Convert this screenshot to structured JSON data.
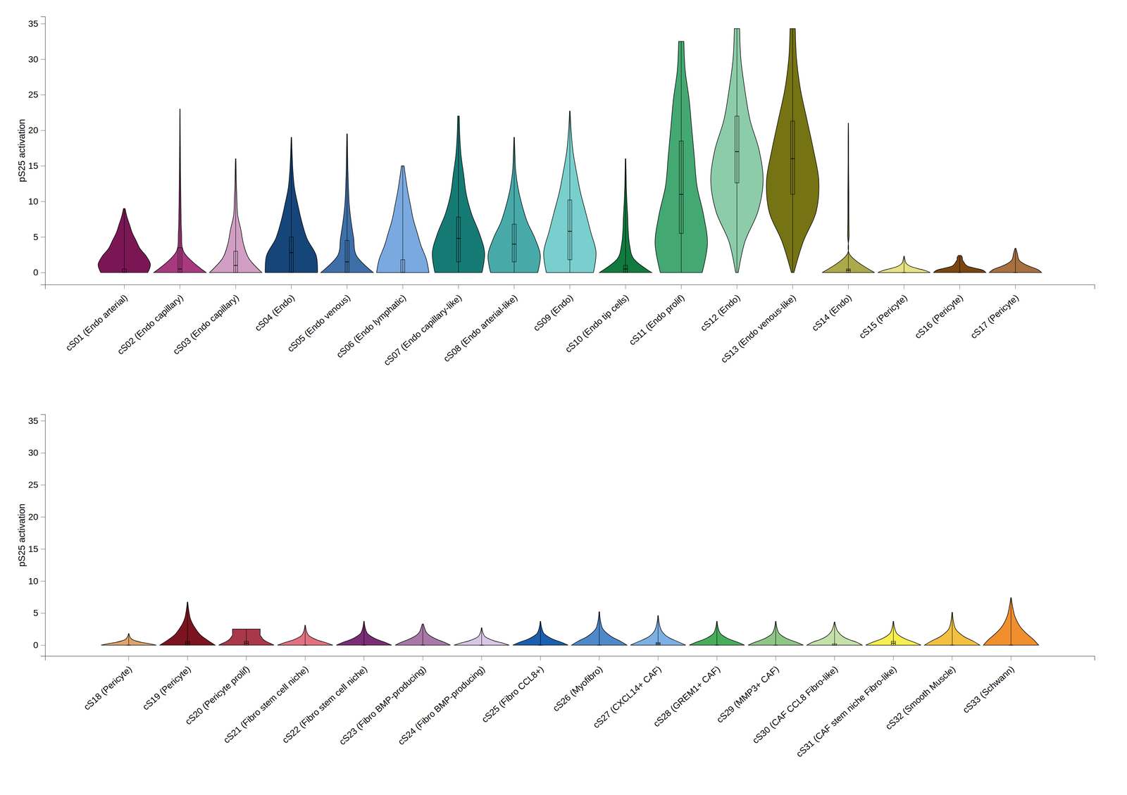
{
  "chart_data": [
    {
      "type": "violin",
      "y_label": "pS25 activation",
      "categories": [
        "cS01 (Endo arterial)",
        "cS02 (Endo capillary)",
        "cS03 (Endo capillary)",
        "cS04 (Endo)",
        "cS05 (Endo venous)",
        "cS06 (Endo lymphatic)",
        "cS07 (Endo capillary-like)",
        "cS08 (Endo arterial-like)",
        "cS09 (Endo)",
        "cS10 (Endo tip cells)",
        "cS11 (Endo prolif)",
        "cS12 (Endo)",
        "cS13 (Endo venous-like)",
        "cS14 (Endo)",
        "cS15 (Pericyte)",
        "cS16 (Pericyte)",
        "cS17 (Pericyte)"
      ],
      "colors": [
        "#7b1654",
        "#a8397f",
        "#d19fc4",
        "#16457a",
        "#3f6fa8",
        "#7aa9e0",
        "#167a74",
        "#47aaa9",
        "#79cfcd",
        "#117a3e",
        "#44a872",
        "#8ccca8",
        "#757313",
        "#aca94a",
        "#e5e283",
        "#7a4510",
        "#a87040"
      ],
      "min": [
        0,
        0,
        0,
        0,
        0,
        0,
        0,
        0,
        0,
        0,
        0,
        0,
        0,
        0,
        0,
        0,
        0
      ],
      "q1": [
        0,
        0,
        0,
        0,
        0,
        0,
        1.5,
        1.5,
        1.8,
        0,
        5.5,
        12.6,
        11,
        0,
        0,
        0,
        0
      ],
      "median": [
        0,
        0.5,
        1,
        2.8,
        1.5,
        0,
        4.8,
        4,
        5.8,
        0.5,
        11,
        17,
        16,
        0.3,
        0,
        0,
        0
      ],
      "q3": [
        0.5,
        3.5,
        3,
        5,
        4.5,
        1.8,
        7.8,
        6.8,
        10.2,
        1,
        18.5,
        22,
        21.3,
        0.5,
        0,
        0,
        0
      ],
      "max": [
        9,
        23,
        16,
        19,
        19.5,
        15,
        22,
        19,
        22.7,
        16,
        32.5,
        34.3,
        34.3,
        21,
        2.3,
        2.4,
        3.4
      ],
      "density": [
        [
          0.9,
          1,
          0.85,
          0.6,
          0.45,
          0.3,
          0.2,
          0.1,
          0.03
        ],
        [
          1,
          0.15,
          0.06,
          0.04,
          0.03,
          0.02,
          0.015,
          0.01,
          0.005
        ],
        [
          1,
          0.5,
          0.3,
          0.2,
          0.08,
          0.05,
          0.03,
          0.02,
          0.01
        ],
        [
          1,
          0.95,
          0.6,
          0.4,
          0.25,
          0.12,
          0.06,
          0.03,
          0.01
        ],
        [
          1,
          0.35,
          0.25,
          0.15,
          0.08,
          0.05,
          0.03,
          0.02,
          0.01
        ],
        [
          1,
          0.9,
          0.7,
          0.55,
          0.4,
          0.3,
          0.2,
          0.12,
          0.05
        ],
        [
          0.9,
          1,
          0.8,
          0.5,
          0.3,
          0.2,
          0.1,
          0.05,
          0.03
        ],
        [
          0.9,
          1,
          0.8,
          0.5,
          0.3,
          0.15,
          0.06,
          0.03,
          0.01
        ],
        [
          0.9,
          1,
          0.8,
          0.6,
          0.4,
          0.25,
          0.12,
          0.05,
          0.01
        ],
        [
          1,
          0.3,
          0.15,
          0.1,
          0.08,
          0.05,
          0.03,
          0.02,
          0.01
        ],
        [
          0.8,
          1,
          0.85,
          0.6,
          0.5,
          0.4,
          0.3,
          0.15,
          0.1
        ],
        [
          0.05,
          0.3,
          0.8,
          1,
          0.85,
          0.5,
          0.3,
          0.15,
          0.1
        ],
        [
          0.05,
          0.4,
          0.9,
          1,
          0.8,
          0.55,
          0.3,
          0.15,
          0.1
        ],
        [
          1,
          0.04,
          0.03,
          0.02,
          0.02,
          0.015,
          0.01,
          0.01,
          0.005
        ],
        [
          1,
          0.8,
          0.5,
          0.25,
          0.12,
          0.06,
          0.04,
          0.02,
          0.01
        ],
        [
          1,
          0.9,
          0.6,
          0.3,
          0.2,
          0.15,
          0.1,
          0.1,
          0.05
        ],
        [
          1,
          0.85,
          0.55,
          0.3,
          0.15,
          0.1,
          0.08,
          0.05,
          0.02
        ]
      ],
      "ylim": [
        -1.7,
        36
      ],
      "yticks": [
        0,
        5,
        10,
        15,
        20,
        25,
        30,
        35
      ]
    },
    {
      "type": "violin",
      "y_label": "pS25 activation",
      "categories": [
        "cS18 (Pericyte)",
        "cS19 (Pericyte)",
        "cS20 (Pericyte prolif)",
        "cS21 (Fibro stem cell niche)",
        "cS22 (Fibro stem cell niche)",
        "cS23 (Fibro BMP-producing)",
        "cS24 (Fibro BMP-producing)",
        "cS25 (Fibro CCL8+)",
        "cS26 (Myofibro)",
        "cS27 (CXCL14+ CAF)",
        "cS28 (GREM1+ CAF)",
        "cS29 (MMP3+ CAF)",
        "cS30 (CAF CCL8 Fibro-like)",
        "cS31 (CAF stem niche Fibro-like)",
        "cS32 (Smooth Muscle)",
        "cS33 (Schwann)"
      ],
      "colors": [
        "#dea46c",
        "#7b1420",
        "#a9384a",
        "#e17282",
        "#7a2d75",
        "#a879a8",
        "#d9c6e6",
        "#1b5fae",
        "#4d89c9",
        "#7cb0e3",
        "#48ad5a",
        "#8ec686",
        "#c6e0a9",
        "#f7ef50",
        "#f3c043",
        "#f18f2f"
      ],
      "min": [
        0,
        0,
        0,
        0,
        0,
        0,
        0,
        0,
        0,
        0,
        0,
        0,
        0,
        0,
        0,
        0
      ],
      "q1": [
        0,
        0,
        0,
        0,
        0,
        0,
        0,
        0,
        0,
        0,
        0,
        0,
        0,
        0,
        0,
        0
      ],
      "median": [
        0,
        0.3,
        0.3,
        0,
        0,
        0,
        0,
        0,
        0,
        0.2,
        0,
        0,
        0,
        0.3,
        0,
        0
      ],
      "q3": [
        0,
        0.6,
        0.6,
        0,
        0,
        0,
        0,
        0,
        0,
        0.4,
        0,
        0,
        0.2,
        0.6,
        0,
        0
      ],
      "max": [
        1.8,
        6.7,
        2.5,
        3.1,
        3.7,
        3.3,
        2.7,
        3.7,
        5.2,
        4.6,
        3.7,
        3.7,
        3.6,
        3.7,
        5.1,
        7.4
      ],
      "density": [
        [
          1,
          0.75,
          0.45,
          0.25,
          0.12,
          0.07,
          0.04,
          0.02,
          0.01
        ],
        [
          1,
          0.7,
          0.45,
          0.3,
          0.18,
          0.1,
          0.06,
          0.03,
          0.01
        ],
        [
          1,
          0.85,
          0.7,
          0.6,
          0.55,
          0.5,
          0.5,
          0.5,
          0.5
        ],
        [
          1,
          0.75,
          0.45,
          0.25,
          0.12,
          0.07,
          0.04,
          0.02,
          0.01
        ],
        [
          1,
          0.75,
          0.45,
          0.25,
          0.12,
          0.07,
          0.04,
          0.02,
          0.01
        ],
        [
          1,
          0.8,
          0.55,
          0.35,
          0.2,
          0.12,
          0.08,
          0.05,
          0.02
        ],
        [
          1,
          0.75,
          0.45,
          0.25,
          0.12,
          0.07,
          0.04,
          0.02,
          0.01
        ],
        [
          1,
          0.75,
          0.45,
          0.25,
          0.12,
          0.07,
          0.04,
          0.02,
          0.01
        ],
        [
          1,
          0.75,
          0.45,
          0.25,
          0.12,
          0.07,
          0.04,
          0.02,
          0.01
        ],
        [
          1,
          0.7,
          0.4,
          0.22,
          0.12,
          0.07,
          0.04,
          0.02,
          0.01
        ],
        [
          1,
          0.75,
          0.45,
          0.25,
          0.12,
          0.07,
          0.04,
          0.02,
          0.01
        ],
        [
          1,
          0.75,
          0.45,
          0.25,
          0.12,
          0.07,
          0.04,
          0.02,
          0.01
        ],
        [
          1,
          0.8,
          0.5,
          0.3,
          0.18,
          0.1,
          0.06,
          0.03,
          0.01
        ],
        [
          1,
          0.75,
          0.45,
          0.25,
          0.12,
          0.07,
          0.04,
          0.02,
          0.01
        ],
        [
          1,
          0.75,
          0.45,
          0.25,
          0.12,
          0.07,
          0.04,
          0.02,
          0.01
        ],
        [
          1,
          0.8,
          0.55,
          0.35,
          0.22,
          0.13,
          0.08,
          0.04,
          0.01
        ]
      ],
      "ylim": [
        -1.7,
        36
      ],
      "yticks": [
        0,
        5,
        10,
        15,
        20,
        25,
        30,
        35
      ]
    }
  ]
}
